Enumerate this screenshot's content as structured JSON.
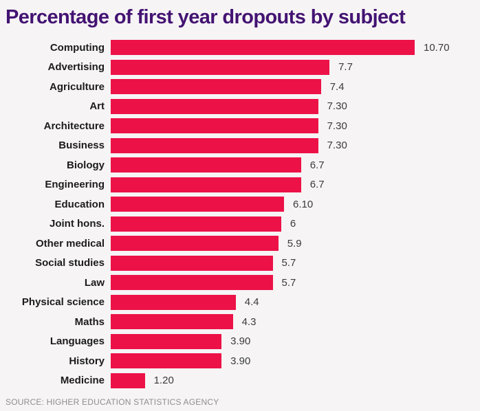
{
  "title": "Percentage of first year dropouts by subject",
  "source": "SOURCE: HIGHER EDUCATION STATISTICS AGENCY",
  "colors": {
    "bar": "#ec1147",
    "title": "#431372",
    "background": "#f6f4f5",
    "category_label": "#1c1c1c",
    "value_label": "#3b3b3b",
    "source_text": "#8f8d8e"
  },
  "chart_data": {
    "type": "bar",
    "orientation": "horizontal",
    "title": "Percentage of first year dropouts by subject",
    "xlabel": "",
    "ylabel": "",
    "unit": "percent",
    "xlim": [
      0,
      10.7
    ],
    "grid": false,
    "legend": false,
    "categories": [
      "Computing",
      "Advertising",
      "Agriculture",
      "Art",
      "Architecture",
      "Business",
      "Biology",
      "Engineering",
      "Education",
      "Joint hons.",
      "Other medical",
      "Social studies",
      "Law",
      "Physical science",
      "Maths",
      "Languages",
      "History",
      "Medicine"
    ],
    "values": [
      10.7,
      7.7,
      7.4,
      7.3,
      7.3,
      7.3,
      6.7,
      6.7,
      6.1,
      6,
      5.9,
      5.7,
      5.7,
      4.4,
      4.3,
      3.9,
      3.9,
      1.2
    ],
    "value_labels": [
      "10.70",
      "7.7",
      "7.4",
      "7.30",
      "7.30",
      "7.30",
      "6.7",
      "6.7",
      "6.10",
      "6",
      "5.9",
      "5.7",
      "5.7",
      "4.4",
      "4.3",
      "3.90",
      "3.90",
      "1.20"
    ],
    "source": "SOURCE: HIGHER EDUCATION STATISTICS AGENCY"
  }
}
